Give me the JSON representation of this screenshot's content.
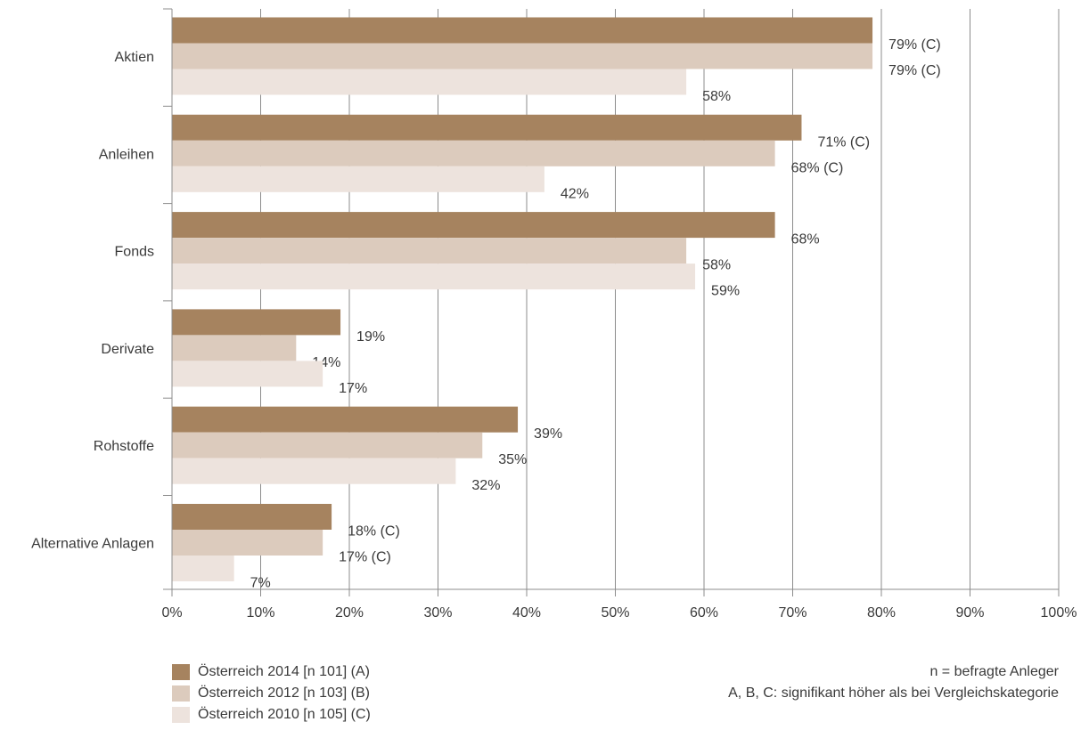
{
  "chart_data": {
    "type": "bar",
    "orientation": "horizontal",
    "categories": [
      "Aktien",
      "Anleihen",
      "Fonds",
      "Derivate",
      "Rohstoffe",
      "Alternative Anlagen"
    ],
    "series": [
      {
        "name": "Österreich 2014 [n 101] (A)",
        "color": "#a6835f",
        "values": [
          79,
          71,
          68,
          19,
          39,
          18
        ],
        "labels": [
          "79% (C)",
          "71% (C)",
          "68%",
          "19%",
          "39%",
          "18% (C)"
        ]
      },
      {
        "name": "Österreich 2012 [n 103] (B)",
        "color": "#dccbbd",
        "values": [
          79,
          68,
          58,
          14,
          35,
          17
        ],
        "labels": [
          "79% (C)",
          "68% (C)",
          "58%",
          "14%",
          "35%",
          "17% (C)"
        ]
      },
      {
        "name": "Österreich 2010 [n 105] (C)",
        "color": "#ede3dd",
        "values": [
          58,
          42,
          59,
          17,
          32,
          7
        ],
        "labels": [
          "58%",
          "42%",
          "59%",
          "17%",
          "32%",
          "7%"
        ]
      }
    ],
    "xlim": [
      0,
      100
    ],
    "x_ticks": [
      "0%",
      "10%",
      "20%",
      "30%",
      "40%",
      "50%",
      "60%",
      "70%",
      "80%",
      "90%",
      "100%"
    ],
    "grid": true,
    "legend_position": "bottom-left"
  },
  "notes": {
    "line1": "n = befragte Anleger",
    "line2": "A, B, C: signifikant höher als bei Vergleichskategorie"
  }
}
